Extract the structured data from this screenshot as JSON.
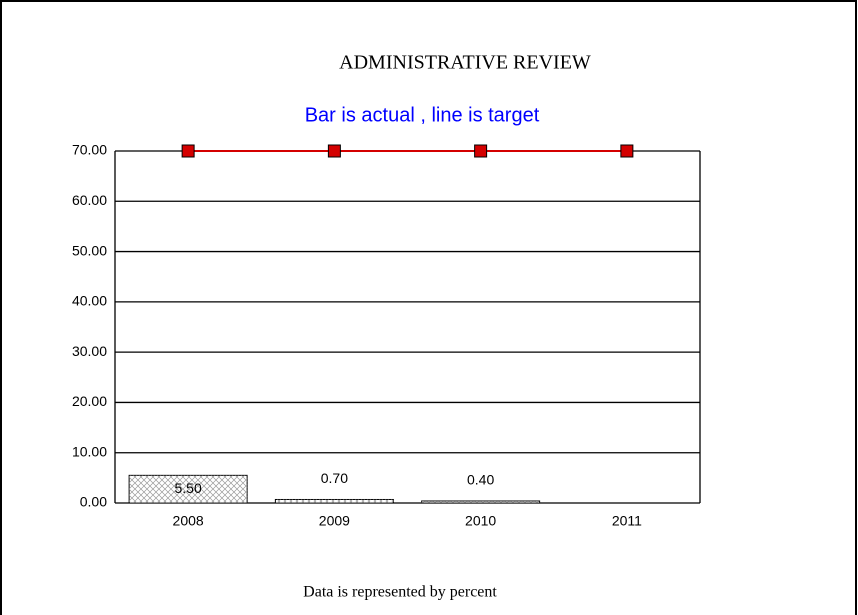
{
  "chart_data": {
    "type": "bar",
    "title": "ADMINISTRATIVE REVIEW",
    "subtitle": "Bar is actual , line is target",
    "footer": "Data is represented by percent",
    "categories": [
      "2008",
      "2009",
      "2010",
      "2011"
    ],
    "series": [
      {
        "type": "bar",
        "color": "#ffffff",
        "values": [
          5.5,
          0.7,
          0.4,
          null
        ],
        "value_labels": [
          "5.50",
          "0.70",
          "0.40",
          null
        ]
      },
      {
        "type": "line",
        "color": "#d40000",
        "values": [
          70,
          70,
          70,
          70
        ]
      }
    ],
    "ylim": [
      0,
      70
    ],
    "yticks": [
      {
        "value": 0,
        "label": "0.00"
      },
      {
        "value": 10,
        "label": "10.00"
      },
      {
        "value": 20,
        "label": "20.00"
      },
      {
        "value": 30,
        "label": "30.00"
      },
      {
        "value": 40,
        "label": "40.00"
      },
      {
        "value": 50,
        "label": "50.00"
      },
      {
        "value": 60,
        "label": "60.00"
      },
      {
        "value": 70,
        "label": "70.00"
      }
    ],
    "grid": true
  }
}
